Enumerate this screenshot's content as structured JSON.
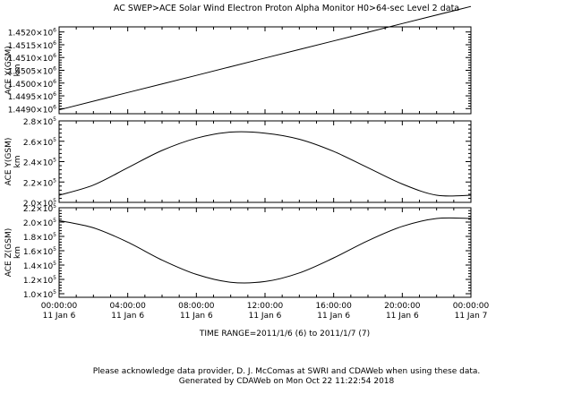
{
  "header": {
    "title": "AC  SWEP>ACE Solar Wind Electron Proton Alpha Monitor  H0>64-sec Level 2 data"
  },
  "time_range_label": "TIME RANGE=2011/1/6 (6) to 2011/1/7 (7)",
  "footer": {
    "acknowledgement": "Please acknowledge data provider, D. J. McComas at SWRI and CDAWeb when using these data.",
    "generated": "Generated by CDAWeb on Mon Oct 22 11:22:54 2018"
  },
  "colors": {
    "line": "#000000",
    "background": "#ffffff"
  },
  "chart_data": [
    {
      "type": "line",
      "ylabel": "ACE X(GSM)",
      "yunit": "km",
      "x_hours": [
        0,
        24
      ],
      "series": [
        {
          "x_hours": [
            0,
            4,
            8,
            12,
            16,
            20,
            24
          ],
          "values": [
            1448950.0,
            1449630.0,
            1450300.0,
            1450980.0,
            1451650.0,
            1452330.0,
            1453000.0
          ]
        }
      ],
      "ylim": [
        1448800.0,
        1452200.0
      ],
      "yticks": [
        {
          "value": 1449000.0,
          "mant": "1.4490",
          "exp": "6"
        },
        {
          "value": 1449500.0,
          "mant": "1.4495",
          "exp": "6"
        },
        {
          "value": 1450000.0,
          "mant": "1.4500",
          "exp": "6"
        },
        {
          "value": 1450500.0,
          "mant": "1.4505",
          "exp": "6"
        },
        {
          "value": 1451000.0,
          "mant": "1.4510",
          "exp": "6"
        },
        {
          "value": 1451500.0,
          "mant": "1.4515",
          "exp": "6"
        },
        {
          "value": 1452000.0,
          "mant": "1.4520",
          "exp": "6"
        }
      ]
    },
    {
      "type": "line",
      "ylabel": "ACE Y(GSM)",
      "yunit": "km",
      "series": [
        {
          "x_hours": [
            0,
            2,
            4,
            6,
            8,
            10,
            12,
            14,
            16,
            18,
            20,
            22,
            24
          ],
          "values": [
            207000,
            217000,
            234000,
            251000,
            263000,
            269000,
            268000,
            262000,
            250000,
            234000,
            218000,
            207000,
            207000
          ]
        }
      ],
      "ylim": [
        200000,
        280000
      ],
      "yticks": [
        {
          "value": 200000,
          "mant": "2.0",
          "exp": "5"
        },
        {
          "value": 220000,
          "mant": "2.2",
          "exp": "5"
        },
        {
          "value": 240000,
          "mant": "2.4",
          "exp": "5"
        },
        {
          "value": 260000,
          "mant": "2.6",
          "exp": "5"
        },
        {
          "value": 280000,
          "mant": "2.8",
          "exp": "5"
        }
      ]
    },
    {
      "type": "line",
      "ylabel": "ACE Z(GSM)",
      "yunit": "km",
      "series": [
        {
          "x_hours": [
            0,
            2,
            4,
            6,
            8,
            10,
            12,
            14,
            16,
            18,
            20,
            22,
            24
          ],
          "values": [
            202000,
            192000,
            172000,
            147000,
            127000,
            116000,
            117000,
            129000,
            150000,
            174000,
            194000,
            205000,
            205000
          ]
        }
      ],
      "ylim": [
        95000,
        220000
      ],
      "yticks": [
        {
          "value": 100000,
          "mant": "1.0",
          "exp": "5"
        },
        {
          "value": 120000,
          "mant": "1.2",
          "exp": "5"
        },
        {
          "value": 140000,
          "mant": "1.4",
          "exp": "5"
        },
        {
          "value": 160000,
          "mant": "1.6",
          "exp": "5"
        },
        {
          "value": 180000,
          "mant": "1.8",
          "exp": "5"
        },
        {
          "value": 200000,
          "mant": "2.0",
          "exp": "5"
        },
        {
          "value": 220000,
          "mant": "2.2",
          "exp": "5"
        }
      ]
    }
  ],
  "xaxis": {
    "ticks": [
      {
        "hours": 0,
        "time": "00:00:00",
        "date": "11 Jan  6"
      },
      {
        "hours": 4,
        "time": "04:00:00",
        "date": "11 Jan  6"
      },
      {
        "hours": 8,
        "time": "08:00:00",
        "date": "11 Jan  6"
      },
      {
        "hours": 12,
        "time": "12:00:00",
        "date": "11 Jan  6"
      },
      {
        "hours": 16,
        "time": "16:00:00",
        "date": "11 Jan  6"
      },
      {
        "hours": 20,
        "time": "20:00:00",
        "date": "11 Jan  6"
      },
      {
        "hours": 24,
        "time": "00:00:00",
        "date": "11 Jan  7"
      }
    ],
    "xlim": [
      0,
      24
    ]
  }
}
